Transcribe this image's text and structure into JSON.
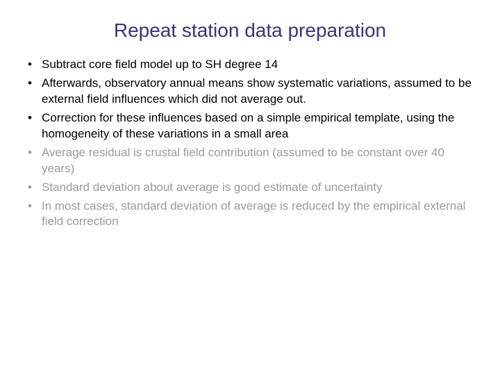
{
  "title": {
    "text": "Repeat station data preparation",
    "color": "#3a3378",
    "fontsize": 28
  },
  "bullets": {
    "fontsize": 17,
    "lineheight": 1.35,
    "active_color": "#000000",
    "inactive_color": "#9a9a9a",
    "items": [
      {
        "text": "Subtract core field model up to SH degree 14",
        "active": true
      },
      {
        "text": "Afterwards, observatory annual means show systematic variations, assumed to be external field influences which did not average out.",
        "active": true
      },
      {
        "text": "Correction for these influences based on a simple empirical template, using the homogeneity of these variations in a small area",
        "active": true
      },
      {
        "text": "Average residual is crustal field contribution (assumed to be constant over 40 years)",
        "active": false
      },
      {
        "text": "Standard deviation about average is good estimate of uncertainty",
        "active": false
      },
      {
        "text": "In most cases, standard deviation of average is reduced by the empirical external field correction",
        "active": false
      }
    ]
  }
}
